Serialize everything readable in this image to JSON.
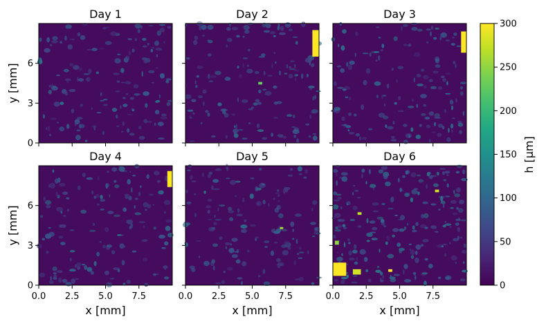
{
  "chart_data": {
    "type": "heatmap",
    "panels": [
      {
        "title": "Day 1",
        "features": []
      },
      {
        "title": "Day 2",
        "features": [
          {
            "x": 9.75,
            "y": 7.5,
            "w": 0.5,
            "h": 2.0,
            "value": 300
          },
          {
            "x": 5.6,
            "y": 4.5,
            "w": 0.3,
            "h": 0.2,
            "value": 230
          }
        ]
      },
      {
        "title": "Day 3",
        "features": [
          {
            "x": 9.8,
            "y": 7.6,
            "w": 0.4,
            "h": 1.6,
            "value": 300
          }
        ]
      },
      {
        "title": "Day 4",
        "features": [
          {
            "x": 9.8,
            "y": 8.0,
            "w": 0.35,
            "h": 1.2,
            "value": 300
          }
        ]
      },
      {
        "title": "Day 5",
        "features": [
          {
            "x": 7.2,
            "y": 4.3,
            "w": 0.25,
            "h": 0.15,
            "value": 260
          }
        ]
      },
      {
        "title": "Day 6",
        "features": [
          {
            "x": 0.5,
            "y": 1.2,
            "w": 1.0,
            "h": 1.0,
            "value": 300
          },
          {
            "x": 1.8,
            "y": 1.0,
            "w": 0.6,
            "h": 0.4,
            "value": 280
          },
          {
            "x": 4.3,
            "y": 1.1,
            "w": 0.3,
            "h": 0.2,
            "value": 300
          },
          {
            "x": 0.3,
            "y": 3.2,
            "w": 0.3,
            "h": 0.3,
            "value": 250
          },
          {
            "x": 2.0,
            "y": 5.4,
            "w": 0.3,
            "h": 0.2,
            "value": 270
          },
          {
            "x": 7.8,
            "y": 7.1,
            "w": 0.3,
            "h": 0.2,
            "value": 280
          }
        ]
      }
    ],
    "xlabel": "x [mm]",
    "ylabel": "y [mm]",
    "xlim": [
      0,
      10
    ],
    "ylim": [
      0,
      9
    ],
    "xticks": [
      0.0,
      2.5,
      5.0,
      7.5
    ],
    "xtick_labels": [
      "0.0",
      "2.5",
      "5.0",
      "7.5"
    ],
    "yticks": [
      0,
      3,
      6
    ],
    "ytick_labels": [
      "0",
      "3",
      "6"
    ],
    "colorbar": {
      "label": "h [μm]",
      "min": 0,
      "max": 300,
      "ticks": [
        0,
        50,
        100,
        150,
        200,
        250,
        300
      ],
      "colormap": "viridis"
    }
  }
}
